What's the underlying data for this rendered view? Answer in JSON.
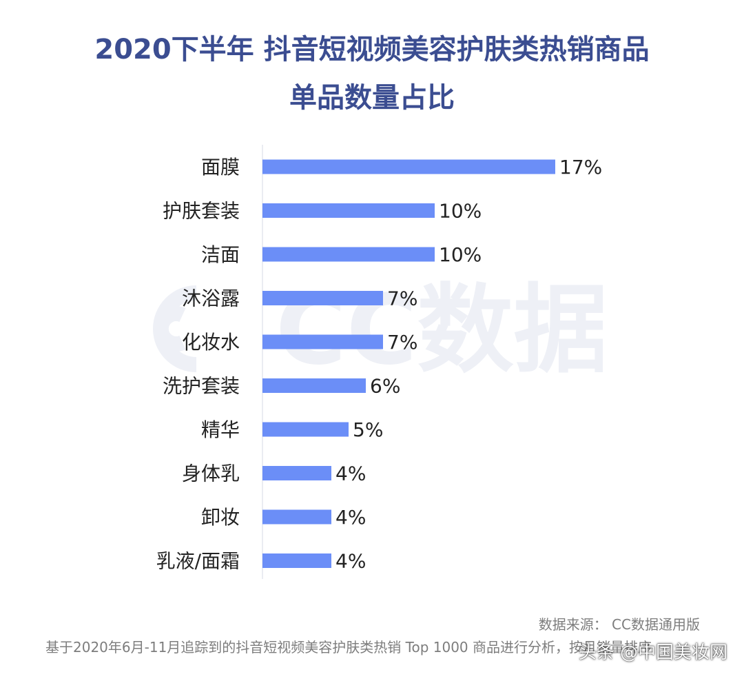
{
  "header": {
    "title_line1": "2020下半年 抖音短视频美容护肤类热销商品",
    "title_line2": "单品数量占比"
  },
  "watermark_text": "CC数据",
  "footer": {
    "source": "数据来源： CC数据通用版",
    "note": "基于2020年6月-11月追踪到的抖音短视频美容护肤类热销 Top 1000 商品进行分析，按月销量排序",
    "credit": "头条 @中国美妆网"
  },
  "colors": {
    "bar": "#6b8ef7",
    "title": "#3b4d91",
    "axis": "#e3e6ee",
    "watermark": "#eef0f6"
  },
  "chart_data": {
    "type": "bar",
    "orientation": "horizontal",
    "categories": [
      "面膜",
      "护肤套装",
      "洁面",
      "沐浴露",
      "化妆水",
      "洗护套装",
      "精华",
      "身体乳",
      "卸妆",
      "乳液/面霜"
    ],
    "values": [
      17,
      10,
      10,
      7,
      7,
      6,
      5,
      4,
      4,
      4
    ],
    "value_labels": [
      "17%",
      "10%",
      "10%",
      "7%",
      "7%",
      "6%",
      "5%",
      "4%",
      "4%",
      "4%"
    ],
    "unit": "%",
    "title": "2020下半年 抖音短视频美容护肤类热销商品单品数量占比",
    "xlabel": "",
    "ylabel": "",
    "grid": false,
    "legend": "none"
  }
}
